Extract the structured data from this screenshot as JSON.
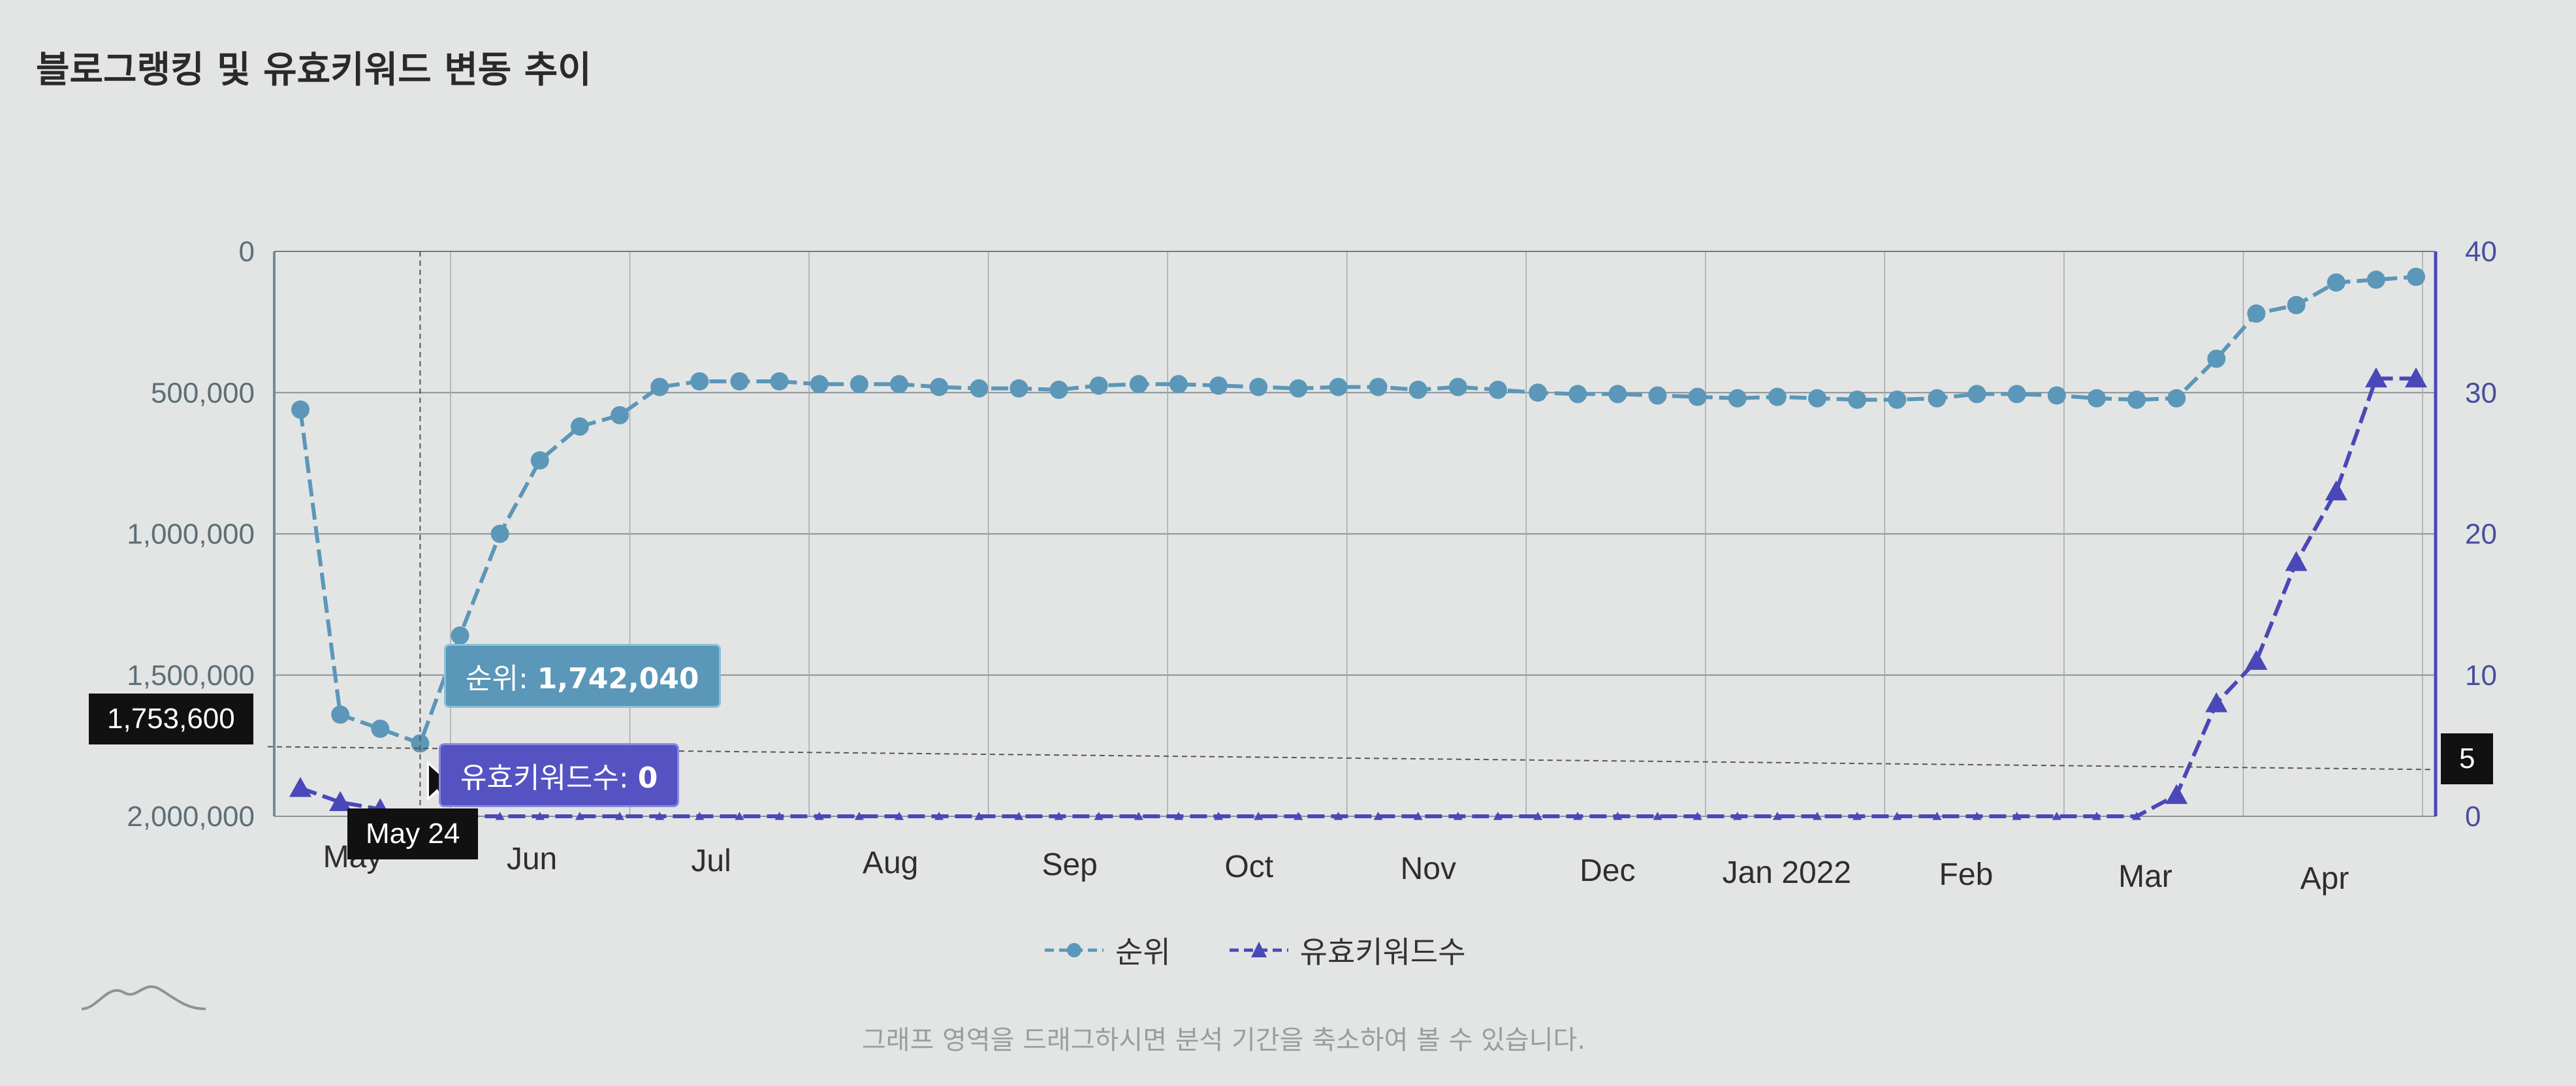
{
  "title": "블로그랭킹 및 유효키워드 변동 추이",
  "hint": "그래프 영역을 드래그하시면 분석 기간을 축소하여 볼 수 있습니다.",
  "legend": {
    "rank": "순위",
    "keywords": "유효키워드수"
  },
  "tooltip": {
    "rank_label": "순위: ",
    "rank_value": "1,742,040",
    "kw_label": "유효키워드수: ",
    "kw_value": "0"
  },
  "crosshair": {
    "left_value": "1,753,600",
    "date": "May 24",
    "right_value": "5"
  },
  "colors": {
    "rank": "#5b97b8",
    "keywords": "#4a48b8",
    "tooltip_kw": "#5552c2"
  },
  "chart_data": {
    "type": "line",
    "x_labels": [
      "May",
      "Jun",
      "Jul",
      "Aug",
      "Sep",
      "Oct",
      "Nov",
      "Dec",
      "Jan 2022",
      "Feb",
      "Mar",
      "Apr"
    ],
    "y_left": {
      "ticks": [
        "0",
        "500,000",
        "1,000,000",
        "1,500,000",
        "2,000,000"
      ],
      "range": [
        2000000,
        0
      ],
      "reversed": true
    },
    "y_right": {
      "ticks": [
        "0",
        "10",
        "20",
        "30",
        "40"
      ],
      "range": [
        0,
        40
      ]
    },
    "grid": true,
    "series": [
      {
        "name": "순위",
        "axis": "left",
        "marker": "circle",
        "values": [
          560000,
          1640000,
          1690000,
          1742040,
          1360000,
          1000000,
          740000,
          620000,
          580000,
          480000,
          460000,
          460000,
          460000,
          470000,
          470000,
          470000,
          480000,
          485000,
          485000,
          490000,
          475000,
          470000,
          470000,
          475000,
          480000,
          485000,
          480000,
          480000,
          490000,
          480000,
          490000,
          500000,
          505000,
          505000,
          510000,
          515000,
          520000,
          515000,
          520000,
          525000,
          525000,
          520000,
          505000,
          505000,
          510000,
          520000,
          525000,
          520000,
          380000,
          220000,
          190000,
          110000,
          100000,
          90000
        ]
      },
      {
        "name": "유효키워드수",
        "axis": "right",
        "marker": "triangle",
        "values": [
          2,
          1,
          0.5,
          0,
          0,
          0,
          0,
          0,
          0,
          0,
          0,
          0,
          0,
          0,
          0,
          0,
          0,
          0,
          0,
          0,
          0,
          0,
          0,
          0,
          0,
          0,
          0,
          0,
          0,
          0,
          0,
          0,
          0,
          0,
          0,
          0,
          0,
          0,
          0,
          0,
          0,
          0,
          0,
          0,
          0,
          0,
          0,
          1.5,
          8,
          11,
          18,
          23,
          31,
          31
        ]
      }
    ]
  }
}
